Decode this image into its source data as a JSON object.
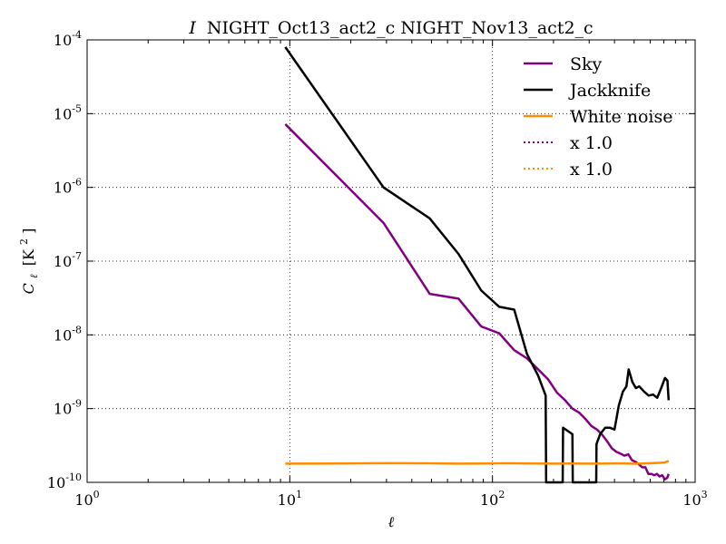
{
  "chart_data": {
    "type": "line",
    "title_prefix": "I",
    "title": "NIGHT_Oct13_act2_c NIGHT_Nov13_act2_c",
    "xlabel": "ℓ",
    "ylabel_main": "C",
    "ylabel_sub": "ℓ",
    "ylabel_units": "[K",
    "ylabel_units_sup": "2",
    "ylabel_units_end": "]",
    "xscale": "log",
    "yscale": "log",
    "xlim": [
      1,
      1000
    ],
    "ylim": [
      1e-10,
      0.0001
    ],
    "grid": true,
    "legend_position": "top-right",
    "x_ticks": [
      {
        "value": 1,
        "base": "10",
        "exp": "0"
      },
      {
        "value": 10,
        "base": "10",
        "exp": "1"
      },
      {
        "value": 100,
        "base": "10",
        "exp": "2"
      },
      {
        "value": 1000,
        "base": "10",
        "exp": "3"
      }
    ],
    "y_ticks": [
      {
        "value": 1e-10,
        "base": "10",
        "exp": "-10"
      },
      {
        "value": 1e-09,
        "base": "10",
        "exp": "-9"
      },
      {
        "value": 1e-08,
        "base": "10",
        "exp": "-8"
      },
      {
        "value": 1e-07,
        "base": "10",
        "exp": "-7"
      },
      {
        "value": 1e-06,
        "base": "10",
        "exp": "-6"
      },
      {
        "value": 1e-05,
        "base": "10",
        "exp": "-5"
      },
      {
        "value": 0.0001,
        "base": "10",
        "exp": "-4"
      }
    ],
    "series": [
      {
        "name": "Sky",
        "color": "#800080",
        "style": "solid",
        "points": [
          [
            9.5,
            7.2e-06
          ],
          [
            29,
            3.3e-07
          ],
          [
            49,
            3.6e-08
          ],
          [
            68,
            3.1e-08
          ],
          [
            88,
            1.3e-08
          ],
          [
            108,
            1.05e-08
          ],
          [
            128,
            6.2e-09
          ],
          [
            148,
            4.8e-09
          ],
          [
            168,
            3.4e-09
          ],
          [
            188,
            2.5e-09
          ],
          [
            208,
            1.65e-09
          ],
          [
            228,
            1.3e-09
          ],
          [
            248,
            1e-09
          ],
          [
            268,
            8.8e-10
          ],
          [
            288,
            7.2e-10
          ],
          [
            308,
            5.8e-10
          ],
          [
            328,
            5.2e-10
          ],
          [
            348,
            4.4e-10
          ],
          [
            368,
            3.6e-10
          ],
          [
            388,
            2.9e-10
          ],
          [
            408,
            2.6e-10
          ],
          [
            428,
            2.45e-10
          ],
          [
            448,
            2.3e-10
          ],
          [
            468,
            2.4e-10
          ],
          [
            488,
            2e-10
          ],
          [
            508,
            1.9e-10
          ],
          [
            528,
            1.75e-10
          ],
          [
            548,
            1.6e-10
          ],
          [
            568,
            1.6e-10
          ],
          [
            588,
            1.3e-10
          ],
          [
            608,
            1.3e-10
          ],
          [
            628,
            1.25e-10
          ],
          [
            648,
            1.3e-10
          ],
          [
            668,
            1.2e-10
          ],
          [
            688,
            1.25e-10
          ],
          [
            708,
            1.1e-10
          ],
          [
            728,
            1.15e-10
          ],
          [
            740,
            1.3e-10
          ]
        ]
      },
      {
        "name": "Jackknife",
        "color": "#000000",
        "style": "solid",
        "points": [
          [
            9.5,
            8e-05
          ],
          [
            29,
            1e-06
          ],
          [
            49,
            3.8e-07
          ],
          [
            68,
            1.25e-07
          ],
          [
            88,
            4e-08
          ],
          [
            108,
            2.4e-08
          ],
          [
            128,
            2.2e-08
          ],
          [
            148,
            5.5e-09
          ],
          [
            168,
            2.8e-09
          ],
          [
            183,
            1.5e-09
          ],
          [
            184,
            1e-10
          ],
          [
            222,
            1e-10
          ],
          [
            223,
            5.5e-10
          ],
          [
            248,
            4.5e-10
          ],
          [
            249,
            1e-10
          ],
          [
            325,
            1e-10
          ],
          [
            326,
            3.3e-10
          ],
          [
            340,
            4.5e-10
          ],
          [
            360,
            5.5e-10
          ],
          [
            380,
            5.5e-10
          ],
          [
            400,
            5.2e-10
          ],
          [
            420,
            1.1e-09
          ],
          [
            440,
            1.7e-09
          ],
          [
            458,
            2e-09
          ],
          [
            470,
            3.4e-09
          ],
          [
            490,
            2.3e-09
          ],
          [
            510,
            1.9e-09
          ],
          [
            530,
            2e-09
          ],
          [
            560,
            1.7e-09
          ],
          [
            590,
            1.5e-09
          ],
          [
            620,
            1.55e-09
          ],
          [
            650,
            1.4e-09
          ],
          [
            680,
            1.9e-09
          ],
          [
            710,
            2.6e-09
          ],
          [
            730,
            2.4e-09
          ],
          [
            740,
            1.3e-09
          ]
        ]
      },
      {
        "name": "White noise",
        "color": "#ff8c00",
        "style": "solid",
        "points": [
          [
            9.5,
            1.79e-10
          ],
          [
            15,
            1.8e-10
          ],
          [
            29,
            1.82e-10
          ],
          [
            49,
            1.81e-10
          ],
          [
            68,
            1.79e-10
          ],
          [
            88,
            1.8e-10
          ],
          [
            108,
            1.81e-10
          ],
          [
            128,
            1.81e-10
          ],
          [
            168,
            1.8e-10
          ],
          [
            208,
            1.79e-10
          ],
          [
            248,
            1.8e-10
          ],
          [
            308,
            1.79e-10
          ],
          [
            368,
            1.8e-10
          ],
          [
            428,
            1.81e-10
          ],
          [
            488,
            1.79e-10
          ],
          [
            548,
            1.8e-10
          ],
          [
            608,
            1.82e-10
          ],
          [
            668,
            1.84e-10
          ],
          [
            708,
            1.86e-10
          ],
          [
            740,
            1.95e-10
          ]
        ]
      },
      {
        "name": "x 1.0",
        "color": "#800080",
        "style": "dotted",
        "points": []
      },
      {
        "name": "x 1.0",
        "color": "#ff8c00",
        "style": "dotted",
        "points": []
      }
    ]
  }
}
